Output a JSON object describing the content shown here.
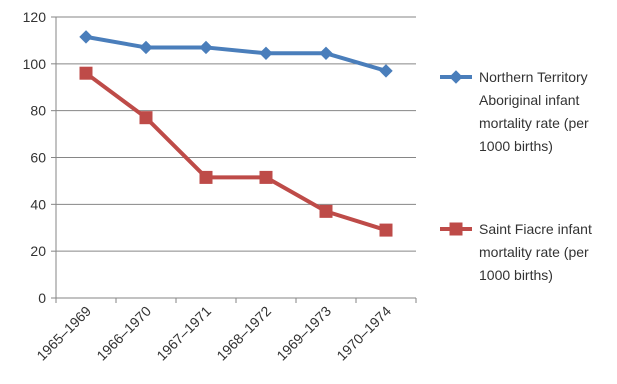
{
  "chart_data": {
    "type": "line",
    "categories": [
      "1965–1969",
      "1966–1970",
      "1967–1971",
      "1968–1972",
      "1969–1973",
      "1970–1974"
    ],
    "series": [
      {
        "name": "Northern Territory Aboriginal infant mortality rate (per 1000 births)",
        "name_lines": [
          "Northern Territory",
          "Aboriginal infant",
          "mortality rate (per",
          "1000 births)"
        ],
        "values": [
          111.5,
          107,
          107,
          104.5,
          104.5,
          97
        ],
        "color": "#4a7ebb",
        "marker": "diamond"
      },
      {
        "name": "Saint Fiacre infant mortality rate (per 1000 births)",
        "name_lines": [
          "Saint Fiacre infant",
          "mortality rate (per",
          "1000 births)"
        ],
        "values": [
          96,
          77,
          51.5,
          51.5,
          37,
          29
        ],
        "color": "#be4b48",
        "marker": "square"
      }
    ],
    "ylim": [
      0,
      120
    ],
    "yticks": [
      0,
      20,
      40,
      60,
      80,
      100,
      120
    ],
    "grid": true,
    "legend": "right",
    "title": "",
    "xlabel": "",
    "ylabel": ""
  }
}
